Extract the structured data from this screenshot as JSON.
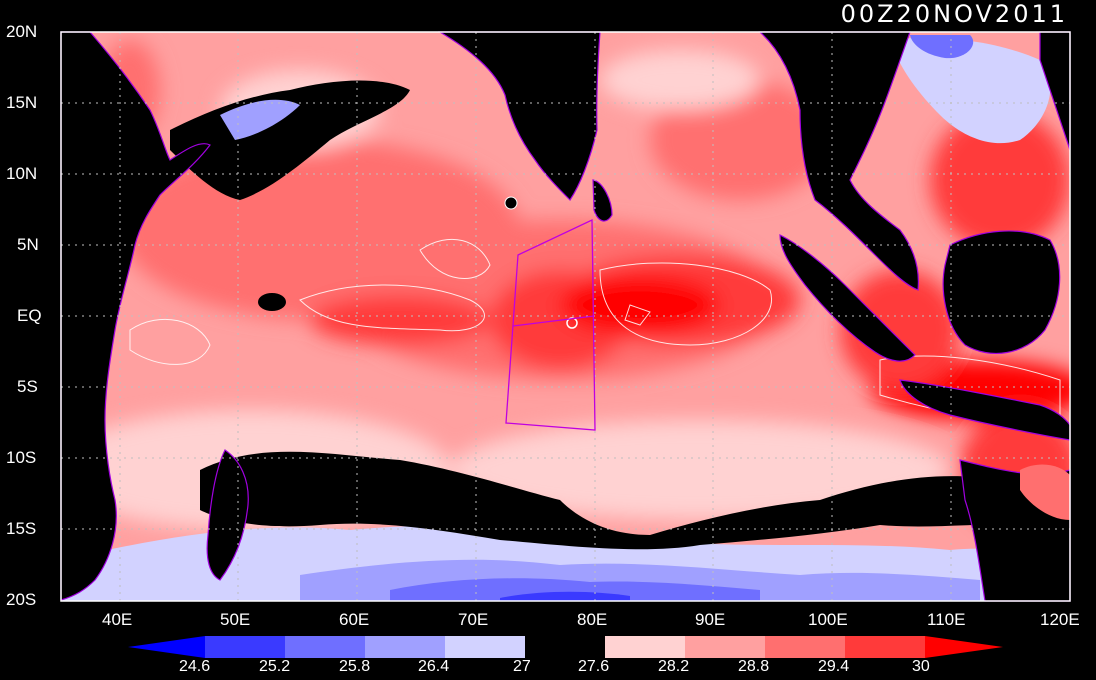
{
  "title": "00Z20NOV2011",
  "colors": {
    "background": "#000000",
    "land": "#000000",
    "grid": "#bfbfbf",
    "frame": "#ffffff",
    "box": "#c000e0",
    "contour": "#ffffff",
    "coastline": "#a000e0"
  },
  "axes": {
    "y_labels": [
      "20N",
      "15N",
      "10N",
      "5N",
      "EQ",
      "5S",
      "10S",
      "15S",
      "20S"
    ],
    "x_labels": [
      "40E",
      "50E",
      "60E",
      "70E",
      "80E",
      "90E",
      "100E",
      "110E",
      "120E"
    ]
  },
  "colorbar": {
    "labels": [
      "24.6",
      "25.2",
      "25.8",
      "26.4",
      "27",
      "27.6",
      "28.2",
      "28.8",
      "29.4",
      "30"
    ],
    "colors": [
      "#0000ff",
      "#3a3aff",
      "#6f6fff",
      "#a0a0ff",
      "#d2d2ff",
      "#000000",
      "#ffd2d2",
      "#ffa0a0",
      "#ff6f6f",
      "#ff3a3a",
      "#ff0000"
    ]
  }
}
